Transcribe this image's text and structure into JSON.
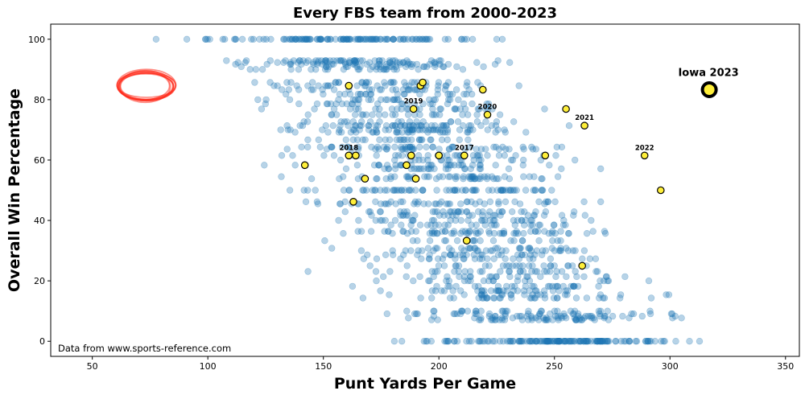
{
  "chart_data": {
    "type": "scatter",
    "title": "Every FBS team from 2000-2023",
    "xlabel": "Punt Yards Per Game",
    "ylabel": "Overall Win Percentage",
    "xlim": [
      32,
      356
    ],
    "ylim": [
      -5,
      105
    ],
    "xticks": [
      50,
      100,
      150,
      200,
      250,
      300,
      350
    ],
    "yticks": [
      0,
      20,
      40,
      60,
      80,
      100
    ],
    "grid": false,
    "source_note": "Data from www.sports-reference.com",
    "colors": {
      "background_points": "#1f77b4",
      "iowa_points": "#ffef3a",
      "iowa_edge": "#000000",
      "outlier_mark": "#ff2a1a"
    },
    "background_points": {
      "description_count": 1800,
      "x_range": [
        46,
        343
      ],
      "y_range": [
        0,
        100
      ],
      "dense_x_center": 205
    },
    "series": [
      {
        "name": "",
        "points": [
          {
            "x": 161,
            "y": 84.6
          },
          {
            "x": 192,
            "y": 84.6
          },
          {
            "x": 193,
            "y": 85.7
          },
          {
            "x": 219,
            "y": 83.3
          },
          {
            "x": 189,
            "y": 76.9
          },
          {
            "x": 221,
            "y": 75.0
          },
          {
            "x": 255,
            "y": 76.9
          },
          {
            "x": 263,
            "y": 71.4
          },
          {
            "x": 161,
            "y": 61.5
          },
          {
            "x": 164,
            "y": 61.5
          },
          {
            "x": 188,
            "y": 61.5
          },
          {
            "x": 200,
            "y": 61.5
          },
          {
            "x": 211,
            "y": 61.5
          },
          {
            "x": 246,
            "y": 61.5
          },
          {
            "x": 289,
            "y": 61.5
          },
          {
            "x": 142,
            "y": 58.3
          },
          {
            "x": 186,
            "y": 58.3
          },
          {
            "x": 168,
            "y": 53.8
          },
          {
            "x": 190,
            "y": 53.8
          },
          {
            "x": 296,
            "y": 50.0
          },
          {
            "x": 163,
            "y": 46.2
          },
          {
            "x": 212,
            "y": 33.3
          },
          {
            "x": 262,
            "y": 25.0
          }
        ]
      }
    ],
    "highlight": {
      "label": "Iowa 2023",
      "x": 317,
      "y": 83.3
    },
    "year_annotations": [
      {
        "label": "2017",
        "x": 211,
        "y": 61.5
      },
      {
        "label": "2018",
        "x": 161,
        "y": 61.5
      },
      {
        "label": "2019",
        "x": 189,
        "y": 76.9
      },
      {
        "label": "2020",
        "x": 221,
        "y": 75.0
      },
      {
        "label": "2021",
        "x": 263,
        "y": 71.4
      },
      {
        "label": "2022",
        "x": 289,
        "y": 61.5
      }
    ],
    "outlier_circle": {
      "x_center": 73,
      "y_center": 84.5,
      "x_radius": 12,
      "y_radius": 5
    }
  }
}
